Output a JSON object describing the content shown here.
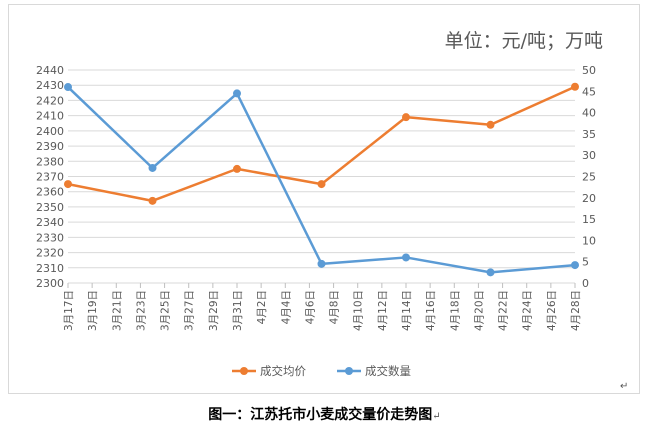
{
  "unit_label": "单位：元/吨；万吨",
  "caption": "图一：江苏托市小麦成交量价走势图",
  "return_mark": "↵",
  "colors": {
    "price": "#ed7d31",
    "volume": "#5b9bd5",
    "grid": "#d9d9d9",
    "text": "#595959"
  },
  "chart_data": {
    "type": "line",
    "title": "",
    "categories": [
      "3月17日",
      "3月19日",
      "3月21日",
      "3月23日",
      "3月25日",
      "3月27日",
      "3月29日",
      "3月31日",
      "4月2日",
      "4月4日",
      "4月6日",
      "4月8日",
      "4月10日",
      "4月12日",
      "4月14日",
      "4月16日",
      "4月18日",
      "4月20日",
      "4月22日",
      "4月24日",
      "4月26日",
      "4月28日"
    ],
    "series": [
      {
        "name": "成交均价",
        "axis": "left",
        "color": "#ed7d31",
        "points": [
          [
            "3月17日",
            2365
          ],
          [
            "3月24日",
            2354
          ],
          [
            "3月31日",
            2375
          ],
          [
            "4月7日",
            2365
          ],
          [
            "4月14日",
            2409
          ],
          [
            "4月21日",
            2404
          ],
          [
            "4月28日",
            2429
          ]
        ]
      },
      {
        "name": "成交数量",
        "axis": "right",
        "color": "#5b9bd5",
        "points": [
          [
            "3月17日",
            46
          ],
          [
            "3月24日",
            27
          ],
          [
            "3月31日",
            44.5
          ],
          [
            "4月7日",
            4.5
          ],
          [
            "4月14日",
            6
          ],
          [
            "4月21日",
            2.5
          ],
          [
            "4月28日",
            4.2
          ]
        ]
      }
    ],
    "y_left": {
      "min": 2300,
      "max": 2440,
      "step": 10,
      "ticks": [
        "2300",
        "2310",
        "2320",
        "2330",
        "2340",
        "2350",
        "2360",
        "2370",
        "2380",
        "2390",
        "2400",
        "2410",
        "2420",
        "2430",
        "2440"
      ]
    },
    "y_right": {
      "min": 0,
      "max": 50,
      "step": 5,
      "ticks": [
        "0",
        "5",
        "10",
        "15",
        "20",
        "25",
        "30",
        "35",
        "40",
        "45",
        "50"
      ]
    },
    "grid": true,
    "legend_position": "bottom"
  }
}
